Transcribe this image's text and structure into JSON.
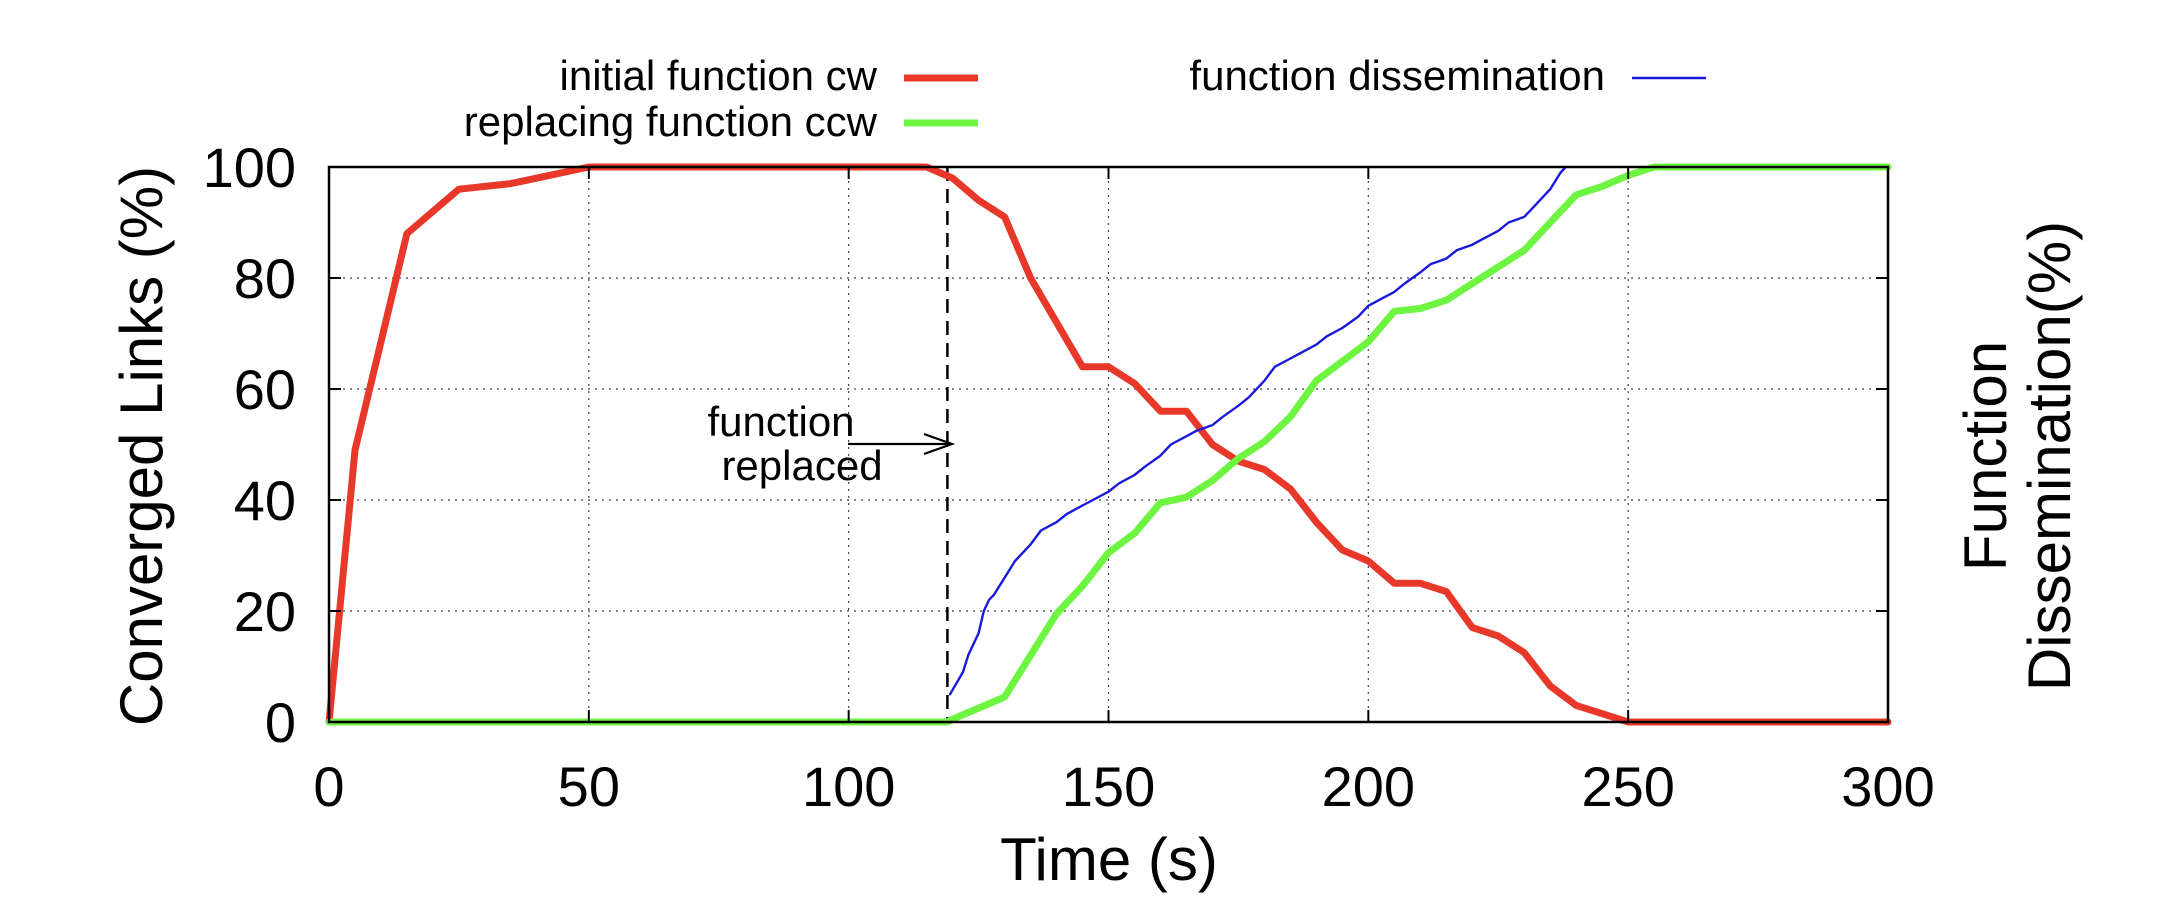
{
  "chart_data": {
    "type": "line",
    "xlabel": "Time (s)",
    "ylabel": "Converged Links (%)",
    "y2label_line1": "Function",
    "y2label_line2": "Dissemination(%)",
    "xlim": [
      0,
      300
    ],
    "ylim": [
      0,
      100
    ],
    "y2lim": [
      0,
      100
    ],
    "x_ticks": [
      "0",
      "50",
      "100",
      "150",
      "200",
      "250",
      "300"
    ],
    "y_ticks": [
      "0",
      "20",
      "40",
      "60",
      "80",
      "100"
    ],
    "grid": true,
    "legend_placement": "top",
    "annotation": {
      "line1": "function",
      "line2": "replaced",
      "x": 119
    },
    "series": [
      {
        "name": "initial function cw",
        "color": "#e8382a",
        "x": [
          0,
          5,
          15,
          25,
          35,
          40,
          50,
          60,
          70,
          80,
          90,
          100,
          110,
          115,
          120,
          125,
          130,
          135,
          140,
          145,
          150,
          155,
          160,
          165,
          170,
          175,
          180,
          185,
          190,
          195,
          200,
          205,
          210,
          215,
          220,
          225,
          230,
          235,
          240,
          245,
          250,
          260,
          270,
          280,
          290,
          300
        ],
        "values": [
          0,
          49,
          88,
          96,
          97,
          98,
          100,
          100,
          100,
          100,
          100,
          100,
          100,
          100,
          98,
          94,
          91,
          80,
          72,
          64,
          64,
          61,
          56,
          56,
          50,
          47,
          45.5,
          42,
          36,
          31,
          29,
          25,
          25,
          23.5,
          17,
          15.5,
          12.5,
          6.5,
          3,
          1.5,
          0,
          0,
          0,
          0,
          0,
          0
        ]
      },
      {
        "name": "replacing function ccw",
        "color": "#6ef542",
        "x": [
          0,
          50,
          100,
          115,
          119,
          120,
          125,
          130,
          135,
          140,
          145,
          150,
          155,
          160,
          165,
          170,
          175,
          180,
          185,
          190,
          195,
          200,
          205,
          210,
          215,
          220,
          225,
          230,
          235,
          240,
          245,
          250,
          255,
          260,
          270,
          280,
          290,
          300
        ],
        "values": [
          0,
          0,
          0,
          0,
          0,
          0.5,
          2.5,
          4.5,
          12,
          19.5,
          24.5,
          30.5,
          34,
          39.5,
          40.5,
          43.5,
          47.5,
          50.5,
          55,
          61.5,
          65,
          68.5,
          74,
          74.5,
          76,
          79,
          82,
          85,
          90,
          95,
          96.5,
          98.5,
          100,
          100,
          100,
          100,
          100,
          100
        ]
      },
      {
        "name": "function dissemination",
        "color": "#1a1adb",
        "x": [
          119.5,
          122,
          123,
          124,
          125,
          126,
          127,
          128,
          130,
          132,
          135,
          137,
          140,
          142,
          145,
          147,
          150,
          152,
          155,
          157,
          160,
          162,
          165,
          167,
          170,
          172,
          175,
          177,
          180,
          182,
          185,
          187,
          190,
          192,
          195,
          198,
          200,
          203,
          205,
          207,
          210,
          212,
          215,
          217,
          220,
          222,
          225,
          227,
          230,
          232,
          235,
          236,
          237,
          238
        ],
        "values": [
          5,
          9,
          12,
          14,
          16,
          20,
          22,
          23,
          26,
          29,
          32,
          34.5,
          36,
          37.5,
          39,
          40,
          41.5,
          43,
          44.5,
          46,
          48,
          50,
          51.5,
          52.5,
          53.5,
          55,
          57,
          58.5,
          61.5,
          64,
          65.5,
          66.5,
          68,
          69.5,
          71,
          73,
          75,
          76.5,
          77.5,
          79,
          81,
          82.5,
          83.5,
          85,
          86,
          87,
          88.5,
          90,
          91,
          93,
          96,
          97.5,
          99,
          100
        ]
      }
    ]
  }
}
